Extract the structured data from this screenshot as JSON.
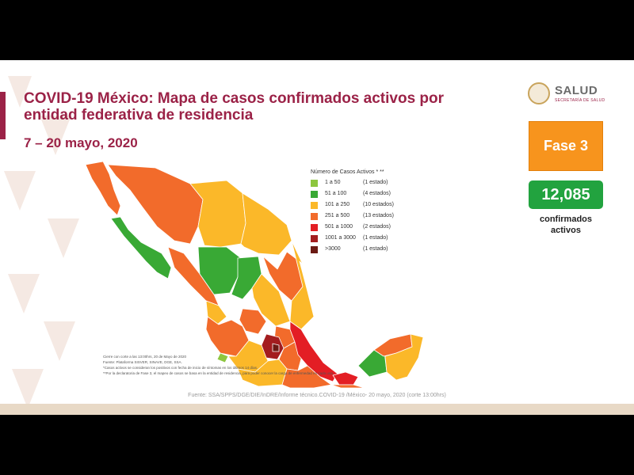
{
  "header": {
    "title_line1": "COVID-19 México: Mapa de casos confirmados activos por",
    "title_line2": "entidad federativa de residencia",
    "date_range": "7 – 20 mayo, 2020"
  },
  "logo": {
    "text": "SALUD",
    "subtext": "SECRETARÍA DE SALUD"
  },
  "phase": {
    "label": "Fase 3",
    "color": "#f7941d"
  },
  "active_cases": {
    "value": "12,085",
    "caption_line1": "confirmados",
    "caption_line2": "activos",
    "color": "#22a33f"
  },
  "legend": {
    "title": "Número de Casos Activos * **",
    "items": [
      {
        "range": "1 a 50",
        "count": "(1 estado)",
        "color": "#8dc63f"
      },
      {
        "range": "51 a 100",
        "count": "(4 estados)",
        "color": "#39a935"
      },
      {
        "range": "101 a 250",
        "count": "(10 estados)",
        "color": "#fbb829"
      },
      {
        "range": "251 a 500",
        "count": "(13 estados)",
        "color": "#f26b2b"
      },
      {
        "range": "501 a 1000",
        "count": "(2 estados)",
        "color": "#e31e24"
      },
      {
        "range": "1001 a 3000",
        "count": "(1 estado)",
        "color": "#a31d1f"
      },
      {
        "range": ">3000",
        "count": "(1 estado)",
        "color": "#6b1a14"
      }
    ]
  },
  "notes": [
    "Cierre con corte a las 13:00hrs, 20 de Mayo de 2020",
    "Fuente: Plataforma SISVER, SINAVE, DGE, SSA.",
    "*Casos activos se consideran los positivos con fecha de inicio de síntomas en los últimos 14 días.",
    "**Por la declaratoria de Fase 3, el mapeo de casos se basa en la entidad de residencia, para poder conocer la carga de enfermedad en cada una."
  ],
  "source": "Fuente: SSA/SPPS/DGE/DIE/InDRE/Informe técnico.COVID-19 /México- 20 mayo, 2020 (corte 13:00hrs)"
}
